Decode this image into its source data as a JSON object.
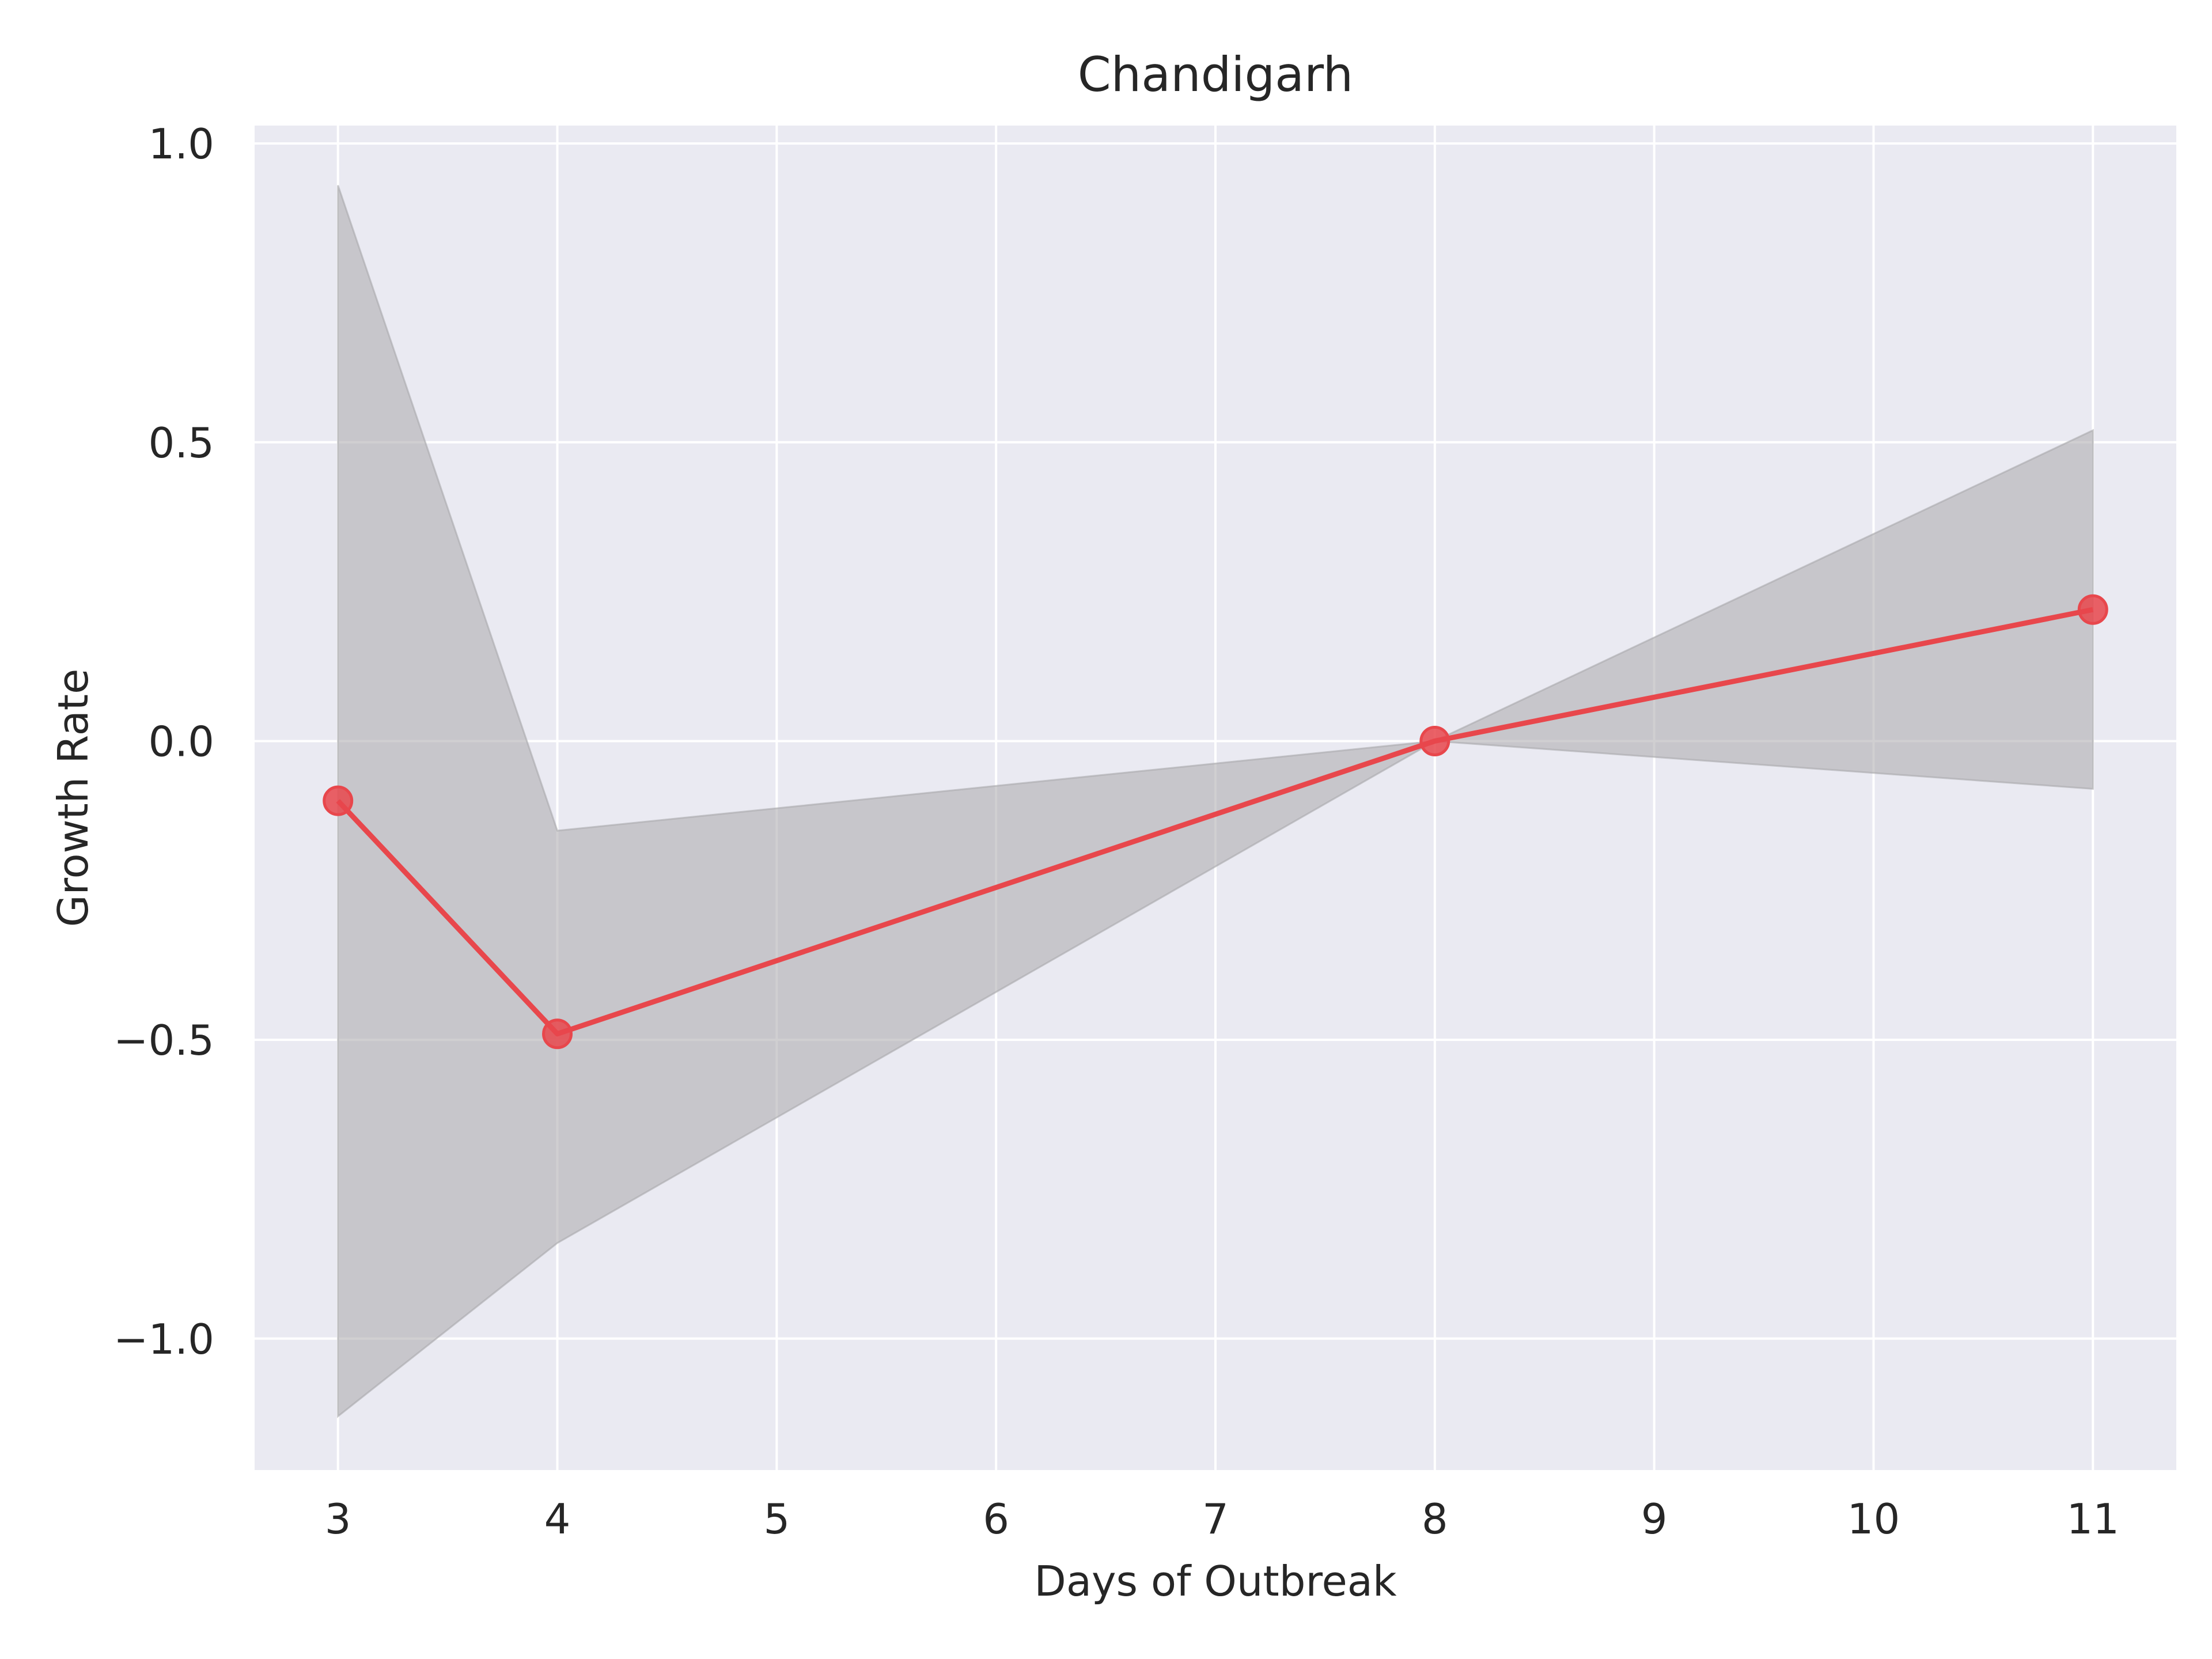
{
  "chart_data": {
    "type": "line",
    "title": "Chandigarh",
    "xlabel": "Days of Outbreak",
    "ylabel": "Growth Rate",
    "xlim": [
      2.62,
      11.38
    ],
    "ylim": [
      -1.22,
      1.03
    ],
    "x_ticks": [
      3,
      4,
      5,
      6,
      7,
      8,
      9,
      10,
      11
    ],
    "x_tick_labels": [
      "3",
      "4",
      "5",
      "6",
      "7",
      "8",
      "9",
      "10",
      "11"
    ],
    "y_ticks": [
      1.0,
      0.5,
      0.0,
      -0.5,
      -1.0
    ],
    "y_tick_labels": [
      "1.0",
      "0.5",
      "0.0",
      "−0.5",
      "−1.0"
    ],
    "grid": true,
    "series": [
      {
        "x": [
          3,
          4,
          8,
          11
        ],
        "y": [
          -0.1,
          -0.49,
          0.0,
          0.22
        ],
        "color": "#e8474c",
        "marker": "circle"
      }
    ],
    "band": {
      "x": [
        3,
        4,
        8,
        11
      ],
      "upper": [
        0.93,
        -0.15,
        0.0,
        0.52
      ],
      "lower": [
        -1.13,
        -0.84,
        0.0,
        -0.08
      ],
      "color": "#a9a8ab"
    },
    "background": "#eaeaf2",
    "grid_color": "#ffffff"
  }
}
